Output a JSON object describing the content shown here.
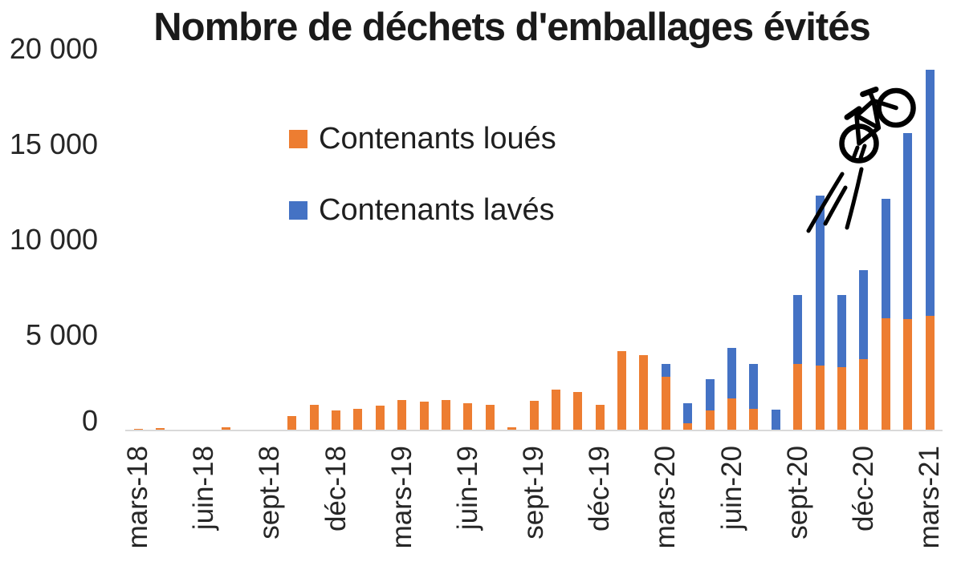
{
  "title": "Nombre de déchets d'emballages évités",
  "legend": [
    {
      "label": "Contenants loués",
      "color": "#ED7D31"
    },
    {
      "label": "Contenants lavés",
      "color": "#4472C4"
    }
  ],
  "decoration_icon": "flying-bicycle-icon",
  "chart_data": {
    "type": "bar",
    "stacked": true,
    "title": "Nombre de déchets d'emballages évités",
    "xlabel": "",
    "ylabel": "",
    "ylim": [
      0,
      20000
    ],
    "grid": false,
    "legend_position": "upper-left-inside",
    "axis_color": "#d9d9d9",
    "text_color": "#262626",
    "categories": [
      "mars-18",
      "avr-18",
      "mai-18",
      "juin-18",
      "juil-18",
      "août-18",
      "sept-18",
      "oct-18",
      "nov-18",
      "déc-18",
      "janv-19",
      "févr-19",
      "mars-19",
      "avr-19",
      "mai-19",
      "juin-19",
      "juil-19",
      "août-19",
      "sept-19",
      "oct-19",
      "nov-19",
      "déc-19",
      "janv-20",
      "févr-20",
      "mars-20",
      "avr-20",
      "mai-20",
      "juin-20",
      "juil-20",
      "août-20",
      "sept-20",
      "oct-20",
      "nov-20",
      "déc-20",
      "janv-21",
      "févr-21",
      "mars-21"
    ],
    "x_tick_labels": [
      "mars-18",
      "juin-18",
      "sept-18",
      "déc-18",
      "mars-19",
      "juin-19",
      "sept-19",
      "déc-19",
      "mars-20",
      "juin-20",
      "sept-20",
      "déc-20",
      "mars-21"
    ],
    "x_tick_every": 3,
    "y_ticks": [
      0,
      5000,
      10000,
      15000,
      20000
    ],
    "y_tick_labels": [
      "0",
      "5 000",
      "10 000",
      "15 000",
      "20 000"
    ],
    "series": [
      {
        "name": "Contenants loués",
        "color": "#ED7D31",
        "values": [
          100,
          130,
          0,
          0,
          180,
          0,
          0,
          750,
          1350,
          1050,
          1150,
          1300,
          1600,
          1500,
          1600,
          1450,
          1350,
          150,
          1550,
          2150,
          2000,
          1350,
          4150,
          3950,
          2800,
          370,
          1060,
          1670,
          1130,
          0,
          3470,
          3400,
          3310,
          3720,
          5890,
          5830,
          6000
        ]
      },
      {
        "name": "Contenants lavés",
        "color": "#4472C4",
        "values": [
          0,
          0,
          0,
          0,
          0,
          0,
          0,
          0,
          0,
          0,
          0,
          0,
          0,
          0,
          0,
          0,
          0,
          0,
          0,
          0,
          0,
          0,
          0,
          0,
          700,
          1070,
          1610,
          2650,
          2350,
          1100,
          3630,
          8900,
          3780,
          4690,
          6260,
          9770,
          12900
        ]
      }
    ]
  }
}
